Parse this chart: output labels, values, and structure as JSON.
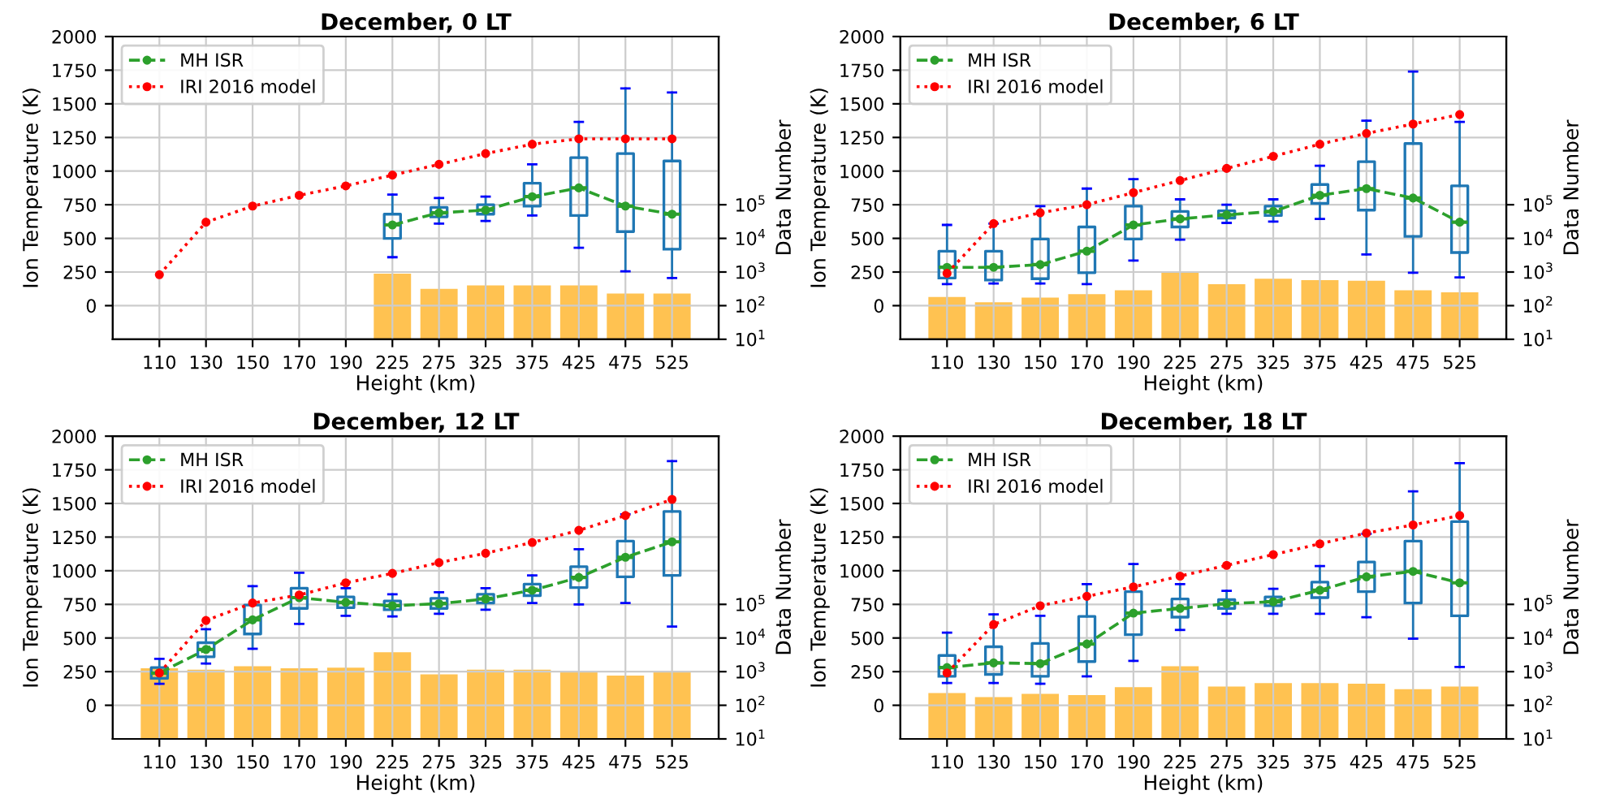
{
  "chart_data": [
    {
      "type": "box",
      "title": "December, 0 LT",
      "xlabel": "Height (km)",
      "ylabel": "Ion Temperature (K)",
      "y2label": "Data Number",
      "categories": [
        "110",
        "130",
        "150",
        "170",
        "190",
        "225",
        "275",
        "325",
        "375",
        "425",
        "475",
        "525"
      ],
      "ylim": [
        -250,
        2000
      ],
      "yticks": [
        0,
        250,
        500,
        750,
        1000,
        1250,
        1500,
        1750,
        2000
      ],
      "y2lim": [
        10,
        10000000000
      ],
      "y2ticks": [
        {
          "value": 10,
          "label": "10$^{1}$"
        },
        {
          "value": 100,
          "label": "10$^{2}$"
        },
        {
          "value": 1000,
          "label": "10$^{3}$"
        },
        {
          "value": 10000,
          "label": "10$^{4}$"
        },
        {
          "value": 100000,
          "label": "10$^{5}$"
        }
      ],
      "log": "y2",
      "grid": true,
      "legend": "top left",
      "series": [
        {
          "type": "bar",
          "axis": "y2",
          "color": "#ffb732",
          "values": [
            null,
            null,
            null,
            null,
            null,
            900,
            316,
            400,
            400,
            400,
            230,
            230
          ]
        },
        {
          "color": "#1f77b4",
          "boxes": [
            null,
            null,
            null,
            null,
            null,
            {
              "low": 360,
              "q1": 500,
              "median": 600,
              "q3": 680,
              "high": 825
            },
            {
              "low": 610,
              "q1": 660,
              "median": 690,
              "q3": 730,
              "high": 800
            },
            {
              "low": 630,
              "q1": 680,
              "median": 710,
              "q3": 750,
              "high": 810
            },
            {
              "low": 670,
              "q1": 740,
              "median": 810,
              "q3": 910,
              "high": 1050
            },
            {
              "low": 430,
              "q1": 670,
              "median": 875,
              "q3": 1100,
              "high": 1365
            },
            {
              "low": 255,
              "q1": 550,
              "median": 740,
              "q3": 1130,
              "high": 1615
            },
            {
              "low": 205,
              "q1": 420,
              "median": 680,
              "q3": 1075,
              "high": 1585
            }
          ]
        },
        {
          "type": "line",
          "name": "MH ISR",
          "color": "#2ca02c",
          "line_style": "dashed",
          "marker": "circle",
          "values": [
            null,
            null,
            null,
            null,
            null,
            600,
            690,
            710,
            810,
            875,
            740,
            680
          ]
        },
        {
          "type": "line",
          "name": "IRI 2016 model",
          "color": "#ff0000",
          "line_style": "dotted",
          "marker": "circle",
          "values": [
            230,
            620,
            740,
            820,
            890,
            970,
            1050,
            1130,
            1200,
            1240,
            1240,
            1240
          ]
        }
      ]
    },
    {
      "type": "box",
      "title": "December, 6 LT",
      "xlabel": "Height (km)",
      "ylabel": "Ion Temperature (K)",
      "y2label": "Data Number",
      "categories": [
        "110",
        "130",
        "150",
        "170",
        "190",
        "225",
        "275",
        "325",
        "375",
        "425",
        "475",
        "525"
      ],
      "ylim": [
        -250,
        2000
      ],
      "yticks": [
        0,
        250,
        500,
        750,
        1000,
        1250,
        1500,
        1750,
        2000
      ],
      "y2lim": [
        10,
        10000000000
      ],
      "y2ticks": [
        {
          "value": 10,
          "label": "10$^{1}$"
        },
        {
          "value": 100,
          "label": "10$^{2}$"
        },
        {
          "value": 1000,
          "label": "10$^{3}$"
        },
        {
          "value": 10000,
          "label": "10$^{4}$"
        },
        {
          "value": 100000,
          "label": "10$^{5}$"
        }
      ],
      "log": "y2",
      "grid": true,
      "legend": "top left",
      "series": [
        {
          "type": "bar",
          "axis": "y2",
          "color": "#ffb732",
          "values": [
            180,
            126,
            174,
            219,
            288,
            1050,
            437,
            630,
            575,
            550,
            288,
            250
          ]
        },
        {
          "color": "#1f77b4",
          "boxes": [
            {
              "low": 160,
              "q1": 205,
              "median": 285,
              "q3": 405,
              "high": 600
            },
            {
              "low": 165,
              "q1": 190,
              "median": 285,
              "q3": 405,
              "high": 610
            },
            {
              "low": 165,
              "q1": 200,
              "median": 305,
              "q3": 495,
              "high": 740
            },
            {
              "low": 160,
              "q1": 245,
              "median": 405,
              "q3": 585,
              "high": 870
            },
            {
              "low": 335,
              "q1": 495,
              "median": 600,
              "q3": 740,
              "high": 940
            },
            {
              "low": 490,
              "q1": 585,
              "median": 645,
              "q3": 700,
              "high": 790
            },
            {
              "low": 615,
              "q1": 650,
              "median": 675,
              "q3": 705,
              "high": 750
            },
            {
              "low": 625,
              "q1": 670,
              "median": 700,
              "q3": 740,
              "high": 790
            },
            {
              "low": 645,
              "q1": 760,
              "median": 820,
              "q3": 900,
              "high": 1040
            },
            {
              "low": 380,
              "q1": 710,
              "median": 870,
              "q3": 1070,
              "high": 1375
            },
            {
              "low": 245,
              "q1": 515,
              "median": 800,
              "q3": 1205,
              "high": 1740
            },
            {
              "low": 210,
              "q1": 395,
              "median": 620,
              "q3": 890,
              "high": 1365
            }
          ]
        },
        {
          "type": "line",
          "name": "MH ISR",
          "color": "#2ca02c",
          "line_style": "dashed",
          "marker": "circle",
          "values": [
            285,
            285,
            305,
            405,
            600,
            645,
            675,
            700,
            820,
            870,
            800,
            620
          ]
        },
        {
          "type": "line",
          "name": "IRI 2016 model",
          "color": "#ff0000",
          "line_style": "dotted",
          "marker": "circle",
          "values": [
            240,
            610,
            690,
            750,
            840,
            930,
            1020,
            1110,
            1200,
            1280,
            1350,
            1420
          ]
        }
      ]
    },
    {
      "type": "box",
      "title": "December, 12 LT",
      "xlabel": "Height (km)",
      "ylabel": "Ion Temperature (K)",
      "y2label": "Data Number",
      "categories": [
        "110",
        "130",
        "150",
        "170",
        "190",
        "225",
        "275",
        "325",
        "375",
        "425",
        "475",
        "525"
      ],
      "ylim": [
        -250,
        2000
      ],
      "yticks": [
        0,
        250,
        500,
        750,
        1000,
        1250,
        1500,
        1750,
        2000
      ],
      "y2lim": [
        10,
        10000000000
      ],
      "y2ticks": [
        {
          "value": 10,
          "label": "10$^{1}$"
        },
        {
          "value": 100,
          "label": "10$^{2}$"
        },
        {
          "value": 1000,
          "label": "10$^{3}$"
        },
        {
          "value": 10000,
          "label": "10$^{4}$"
        },
        {
          "value": 100000,
          "label": "10$^{5}$"
        }
      ],
      "log": "y2",
      "grid": true,
      "legend": "top left",
      "series": [
        {
          "type": "bar",
          "axis": "y2",
          "color": "#ffb732",
          "values": [
            1260,
            1150,
            1450,
            1260,
            1320,
            3800,
            830,
            1150,
            1150,
            1050,
            760,
            950
          ]
        },
        {
          "color": "#1f77b4",
          "boxes": [
            {
              "low": 160,
              "q1": 200,
              "median": 240,
              "q3": 280,
              "high": 345
            },
            {
              "low": 310,
              "q1": 360,
              "median": 415,
              "q3": 465,
              "high": 565
            },
            {
              "low": 420,
              "q1": 530,
              "median": 635,
              "q3": 745,
              "high": 885
            },
            {
              "low": 605,
              "q1": 720,
              "median": 800,
              "q3": 870,
              "high": 985
            },
            {
              "low": 665,
              "q1": 725,
              "median": 765,
              "q3": 805,
              "high": 870
            },
            {
              "low": 660,
              "q1": 710,
              "median": 740,
              "q3": 775,
              "high": 825
            },
            {
              "low": 680,
              "q1": 720,
              "median": 755,
              "q3": 795,
              "high": 840
            },
            {
              "low": 710,
              "q1": 760,
              "median": 790,
              "q3": 825,
              "high": 870
            },
            {
              "low": 760,
              "q1": 815,
              "median": 855,
              "q3": 900,
              "high": 965
            },
            {
              "low": 750,
              "q1": 875,
              "median": 950,
              "q3": 1030,
              "high": 1160
            },
            {
              "low": 760,
              "q1": 955,
              "median": 1100,
              "q3": 1220,
              "high": 1420
            },
            {
              "low": 585,
              "q1": 965,
              "median": 1215,
              "q3": 1440,
              "high": 1815
            }
          ]
        },
        {
          "type": "line",
          "name": "MH ISR",
          "color": "#2ca02c",
          "line_style": "dashed",
          "marker": "circle",
          "values": [
            240,
            415,
            635,
            800,
            765,
            740,
            755,
            790,
            855,
            950,
            1100,
            1215
          ]
        },
        {
          "type": "line",
          "name": "IRI 2016 model",
          "color": "#ff0000",
          "line_style": "dotted",
          "marker": "circle",
          "values": [
            240,
            630,
            760,
            820,
            910,
            980,
            1060,
            1130,
            1210,
            1300,
            1410,
            1530
          ]
        }
      ]
    },
    {
      "type": "box",
      "title": "December, 18 LT",
      "xlabel": "Height (km)",
      "ylabel": "Ion Temperature (K)",
      "y2label": "Data Number",
      "categories": [
        "110",
        "130",
        "150",
        "170",
        "190",
        "225",
        "275",
        "325",
        "375",
        "425",
        "475",
        "525"
      ],
      "ylim": [
        -250,
        2000
      ],
      "yticks": [
        0,
        250,
        500,
        750,
        1000,
        1250,
        1500,
        1750,
        2000
      ],
      "y2lim": [
        10,
        10000000000
      ],
      "y2ticks": [
        {
          "value": 10,
          "label": "10$^{1}$"
        },
        {
          "value": 100,
          "label": "10$^{2}$"
        },
        {
          "value": 1000,
          "label": "10$^{3}$"
        },
        {
          "value": 10000,
          "label": "10$^{4}$"
        },
        {
          "value": 100000,
          "label": "10$^{5}$"
        }
      ],
      "log": "y2",
      "grid": true,
      "legend": "top left",
      "series": [
        {
          "type": "bar",
          "axis": "y2",
          "color": "#ffb732",
          "values": [
            230,
            174,
            219,
            200,
            347,
            1450,
            363,
            457,
            457,
            437,
            302,
            363
          ]
        },
        {
          "color": "#1f77b4",
          "boxes": [
            {
              "low": 165,
              "q1": 215,
              "median": 280,
              "q3": 370,
              "high": 540
            },
            {
              "low": 165,
              "q1": 230,
              "median": 315,
              "q3": 435,
              "high": 675
            },
            {
              "low": 160,
              "q1": 215,
              "median": 310,
              "q3": 460,
              "high": 665
            },
            {
              "low": 215,
              "q1": 325,
              "median": 455,
              "q3": 660,
              "high": 900
            },
            {
              "low": 330,
              "q1": 525,
              "median": 685,
              "q3": 845,
              "high": 1050
            },
            {
              "low": 560,
              "q1": 655,
              "median": 720,
              "q3": 790,
              "high": 900
            },
            {
              "low": 680,
              "q1": 720,
              "median": 755,
              "q3": 785,
              "high": 850
            },
            {
              "low": 680,
              "q1": 740,
              "median": 770,
              "q3": 805,
              "high": 865
            },
            {
              "low": 680,
              "q1": 800,
              "median": 855,
              "q3": 915,
              "high": 1035
            },
            {
              "low": 655,
              "q1": 845,
              "median": 955,
              "q3": 1065,
              "high": 1275
            },
            {
              "low": 495,
              "q1": 760,
              "median": 995,
              "q3": 1220,
              "high": 1590
            },
            {
              "low": 285,
              "q1": 665,
              "median": 910,
              "q3": 1365,
              "high": 1800
            }
          ]
        },
        {
          "type": "line",
          "name": "MH ISR",
          "color": "#2ca02c",
          "line_style": "dashed",
          "marker": "circle",
          "values": [
            280,
            315,
            310,
            455,
            685,
            720,
            755,
            770,
            855,
            955,
            995,
            910
          ]
        },
        {
          "type": "line",
          "name": "IRI 2016 model",
          "color": "#ff0000",
          "line_style": "dotted",
          "marker": "circle",
          "values": [
            240,
            600,
            740,
            810,
            880,
            960,
            1040,
            1120,
            1200,
            1280,
            1340,
            1410
          ]
        }
      ]
    }
  ]
}
